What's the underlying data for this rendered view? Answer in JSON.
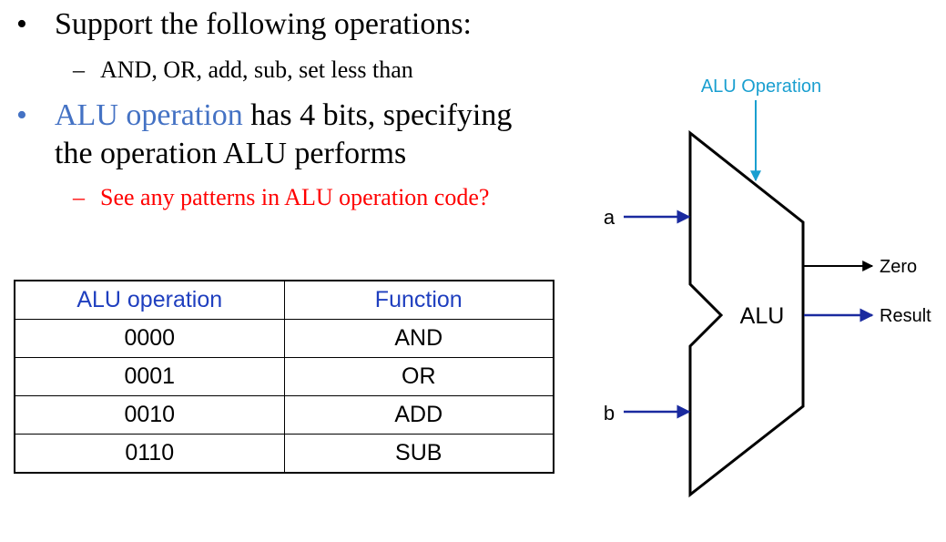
{
  "bullets": {
    "b1": {
      "text": "Support the following operations:",
      "sub": "AND, OR, add, sub, set less than"
    },
    "b2": {
      "highlight": "ALU operation",
      "line1_rest": " has 4 bits, specifying",
      "line2": "the operation ALU performs",
      "sub": "See any patterns in ALU operation code?"
    }
  },
  "table": {
    "headers": [
      "ALU operation",
      "Function"
    ],
    "rows": [
      [
        "0000",
        "AND"
      ],
      [
        "0001",
        "OR"
      ],
      [
        "0010",
        "ADD"
      ],
      [
        "0110",
        "SUB"
      ]
    ]
  },
  "diagram": {
    "alu_label": "ALU",
    "control_label": "ALU Operation",
    "input_a": "a",
    "input_b": "b",
    "output_zero": "Zero",
    "output_result": "Result",
    "colors": {
      "control": "#1a9fd0",
      "input_arrow": "#1a2a9f",
      "output_result": "#1a2a9f",
      "output_zero": "#000000",
      "outline": "#000000"
    }
  }
}
